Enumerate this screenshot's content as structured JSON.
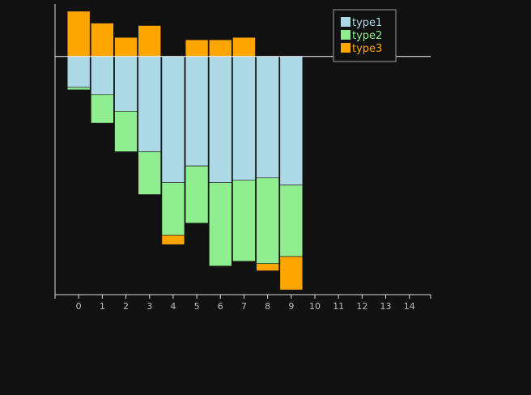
{
  "chart_data": {
    "type": "bar",
    "stacked": true,
    "categories": [
      0,
      1,
      2,
      3,
      4,
      5,
      6,
      7,
      8,
      9
    ],
    "x_ticks": [
      0,
      1,
      2,
      3,
      4,
      5,
      6,
      7,
      8,
      9,
      10,
      11,
      12,
      13,
      14
    ],
    "xlim": [
      -1,
      14.9
    ],
    "ylim": [
      -100,
      22
    ],
    "series": [
      {
        "name": "type1",
        "color": "#add8e6",
        "values": [
          -13,
          -16,
          -23,
          -40,
          -53,
          -46,
          -53,
          -52,
          -51,
          -54
        ]
      },
      {
        "name": "type2",
        "color": "#90ee90",
        "values": [
          -1,
          -12,
          -17,
          -18,
          -22,
          -24,
          -35,
          -34,
          -36,
          -30
        ]
      },
      {
        "name": "type3",
        "color": "#ffa500",
        "values": [
          19,
          14,
          8,
          13,
          -4,
          7,
          7,
          8,
          -3,
          -14
        ]
      }
    ],
    "legend": {
      "position": "top-right"
    },
    "grid": false,
    "zero_line": true,
    "title": "",
    "xlabel": "",
    "ylabel": ""
  }
}
